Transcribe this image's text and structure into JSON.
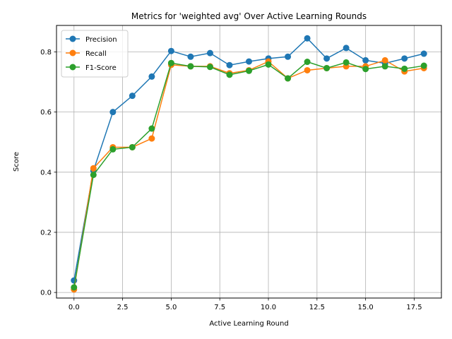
{
  "chart_data": {
    "type": "line",
    "title": "Metrics for 'weighted avg' Over Active Learning Rounds",
    "xlabel": "Active Learning Round",
    "ylabel": "Score",
    "xlim": [
      -0.9,
      18.9
    ],
    "ylim": [
      -0.0185,
      0.888
    ],
    "xticks": [
      0.0,
      2.5,
      5.0,
      7.5,
      10.0,
      12.5,
      15.0,
      17.5
    ],
    "xtick_labels": [
      "0.0",
      "2.5",
      "5.0",
      "7.5",
      "10.0",
      "12.5",
      "15.0",
      "17.5"
    ],
    "yticks": [
      0.0,
      0.2,
      0.4,
      0.6,
      0.8
    ],
    "ytick_labels": [
      "0.0",
      "0.2",
      "0.4",
      "0.6",
      "0.8"
    ],
    "grid": true,
    "legend_position": "top-left",
    "x": [
      0,
      1,
      2,
      3,
      4,
      5,
      6,
      7,
      8,
      9,
      10,
      11,
      12,
      13,
      14,
      15,
      16,
      17,
      18
    ],
    "series": [
      {
        "name": "Precision",
        "color": "#1f77b4",
        "values": [
          0.04,
          0.405,
          0.6,
          0.654,
          0.718,
          0.803,
          0.784,
          0.796,
          0.756,
          0.768,
          0.778,
          0.784,
          0.845,
          0.778,
          0.813,
          0.772,
          0.762,
          0.778,
          0.794
        ]
      },
      {
        "name": "Recall",
        "color": "#ff7f0e",
        "values": [
          0.01,
          0.413,
          0.483,
          0.483,
          0.512,
          0.757,
          0.752,
          0.752,
          0.729,
          0.739,
          0.768,
          0.712,
          0.739,
          0.746,
          0.752,
          0.752,
          0.772,
          0.735,
          0.746
        ]
      },
      {
        "name": "F1-Score",
        "color": "#2ca02c",
        "values": [
          0.017,
          0.391,
          0.476,
          0.483,
          0.545,
          0.763,
          0.752,
          0.75,
          0.724,
          0.737,
          0.758,
          0.712,
          0.767,
          0.746,
          0.765,
          0.743,
          0.752,
          0.744,
          0.754
        ]
      }
    ]
  }
}
